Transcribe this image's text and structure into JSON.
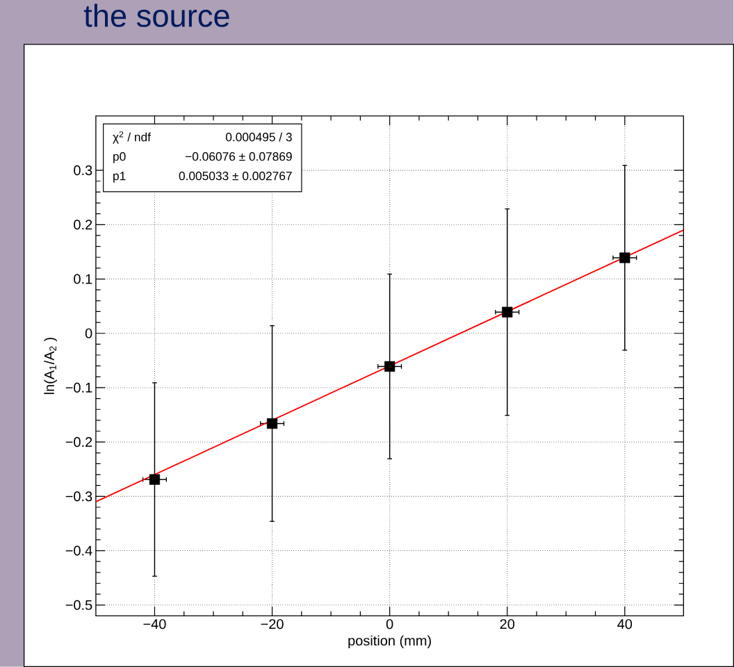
{
  "chart_data": {
    "type": "scatter",
    "title": "the source",
    "xlabel": "position (mm)",
    "ylabel": "ln(A$_{1}$/A$_{2}$ )",
    "annotations": [
      "χ$^{2}$ / ndf",
      "0.000495 / 3",
      "p0",
      "−0.06076 ± 0.07869",
      "p1",
      "0.005033 ± 0.002767"
    ],
    "xlim": [
      -50,
      50
    ],
    "ylim": [
      -0.52,
      0.4
    ],
    "xticks": [
      {
        "value": -40,
        "label": "−40"
      },
      {
        "value": -20,
        "label": "−20"
      },
      0,
      20,
      40
    ],
    "yticks": [
      {
        "value": -0.5,
        "label": "−0.5"
      },
      {
        "value": -0.4,
        "label": "−0.4"
      },
      {
        "value": -0.3,
        "label": "−0.3"
      },
      {
        "value": -0.2,
        "label": "−0.2"
      },
      {
        "value": -0.1,
        "label": "−0.1"
      },
      0,
      0.1,
      0.2,
      0.3
    ],
    "grid": true,
    "series": [
      {
        "marker": "square",
        "color": "#000000",
        "x": [
          -40,
          -20,
          0,
          20,
          40
        ],
        "values": [
          -0.269,
          -0.166,
          -0.061,
          0.039,
          0.139
        ],
        "errors": [
          0.178,
          0.18,
          0.17,
          0.19,
          0.17
        ],
        "xerrors": [
          2,
          2,
          2,
          2,
          2
        ]
      },
      {
        "type": "line",
        "color": "#ff0000",
        "x": [
          -50,
          50
        ],
        "values": [
          -0.31,
          0.19
        ]
      }
    ]
  }
}
